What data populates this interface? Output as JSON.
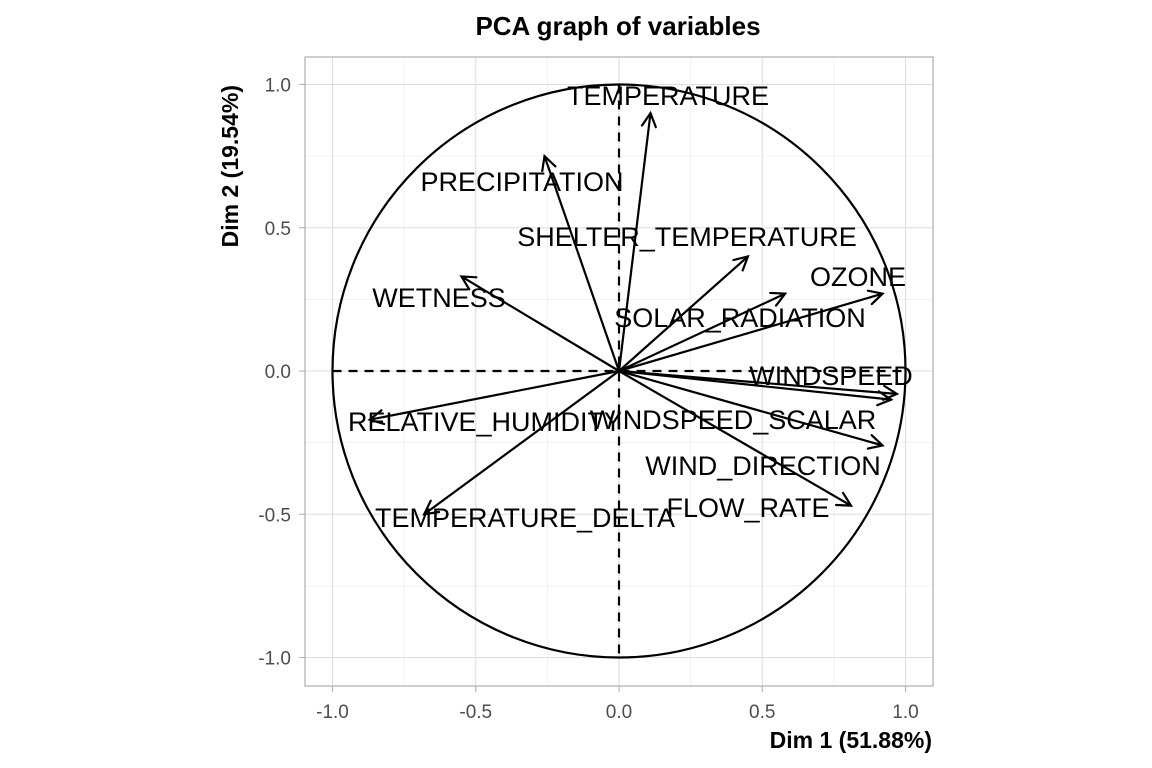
{
  "chart_data": {
    "type": "scatter",
    "subtype": "pca-variables-factor-map",
    "title": "PCA graph of variables",
    "xlabel": "Dim 1 (51.88%)",
    "ylabel": "Dim 2 (19.54%)",
    "xlim": [
      -1.0,
      1.0
    ],
    "ylim": [
      -1.0,
      1.0
    ],
    "xticks": [
      "-1.0",
      "-0.5",
      "0.0",
      "0.5",
      "1.0"
    ],
    "yticks": [
      "-1.0",
      "-0.5",
      "0.0",
      "0.5",
      "1.0"
    ],
    "grid": true,
    "unit_circle": true,
    "variables": [
      {
        "label": "TEMPERATURE",
        "x": 0.11,
        "y": 0.9
      },
      {
        "label": "PRECIPITATION",
        "x": -0.26,
        "y": 0.75
      },
      {
        "label": "SHELTER_TEMPERATURE",
        "x": 0.45,
        "y": 0.4
      },
      {
        "label": "OZONE",
        "x": 0.92,
        "y": 0.27
      },
      {
        "label": "SOLAR_RADIATION",
        "x": 0.58,
        "y": 0.27
      },
      {
        "label": "WETNESS",
        "x": -0.55,
        "y": 0.33
      },
      {
        "label": "WINDSPEED",
        "x": 0.97,
        "y": -0.08
      },
      {
        "label": "WINDSPEED_SCALAR",
        "x": 0.95,
        "y": -0.1
      },
      {
        "label": "RELATIVE_HUMIDITY",
        "x": -0.87,
        "y": -0.17
      },
      {
        "label": "WIND_DIRECTION",
        "x": 0.92,
        "y": -0.26
      },
      {
        "label": "FLOW_RATE",
        "x": 0.81,
        "y": -0.47
      },
      {
        "label": "TEMPERATURE_DELTA",
        "x": -0.68,
        "y": -0.5
      }
    ]
  }
}
